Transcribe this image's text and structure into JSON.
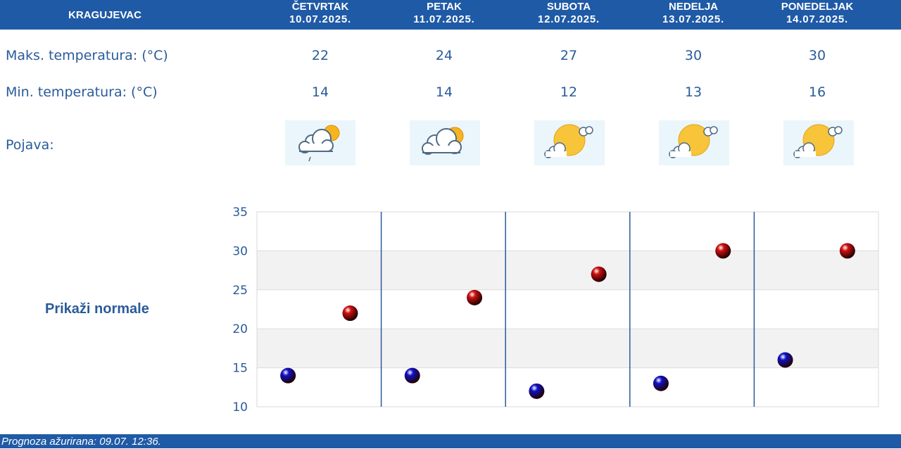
{
  "header": {
    "city": "KRAGUJEVAC",
    "days": [
      {
        "name": "ČETVRTAK",
        "date": "10.07.2025."
      },
      {
        "name": "PETAK",
        "date": "11.07.2025."
      },
      {
        "name": "SUBOTA",
        "date": "12.07.2025."
      },
      {
        "name": "NEDELJA",
        "date": "13.07.2025."
      },
      {
        "name": "PONEDELJAK",
        "date": "14.07.2025."
      }
    ]
  },
  "rows": {
    "max_label": "Maks. temperatura: (°C)",
    "min_label": "Min. temperatura: (°C)",
    "phen_label": "Pojava:",
    "max_values": [
      "22",
      "24",
      "27",
      "30",
      "30"
    ],
    "min_values": [
      "14",
      "14",
      "12",
      "13",
      "16"
    ],
    "icons": [
      "cloud-sun-rain-icon",
      "cloud-sun-icon",
      "sun-cloud-icon",
      "sun-cloud-icon",
      "sun-cloud-icon"
    ]
  },
  "normals_link": "Prikaži normale",
  "chart_data": {
    "type": "scatter",
    "categories": [
      "ČETVRTAK",
      "PETAK",
      "SUBOTA",
      "NEDELJA",
      "PONEDELJAK"
    ],
    "series": [
      {
        "values": [
          14,
          14,
          12,
          13,
          16
        ],
        "color": "#1010c8"
      },
      {
        "values": [
          22,
          24,
          27,
          30,
          30
        ],
        "color": "#d01010"
      }
    ],
    "ylim": [
      10,
      35
    ],
    "yticks": [
      "10",
      "15",
      "20",
      "25",
      "30",
      "35"
    ],
    "grid": true
  },
  "footer": {
    "text": "Prognoza ažurirana:  09.07. 12:36."
  },
  "colors": {
    "header_bg": "#1f5aa6",
    "text": "#2a5b9a"
  }
}
